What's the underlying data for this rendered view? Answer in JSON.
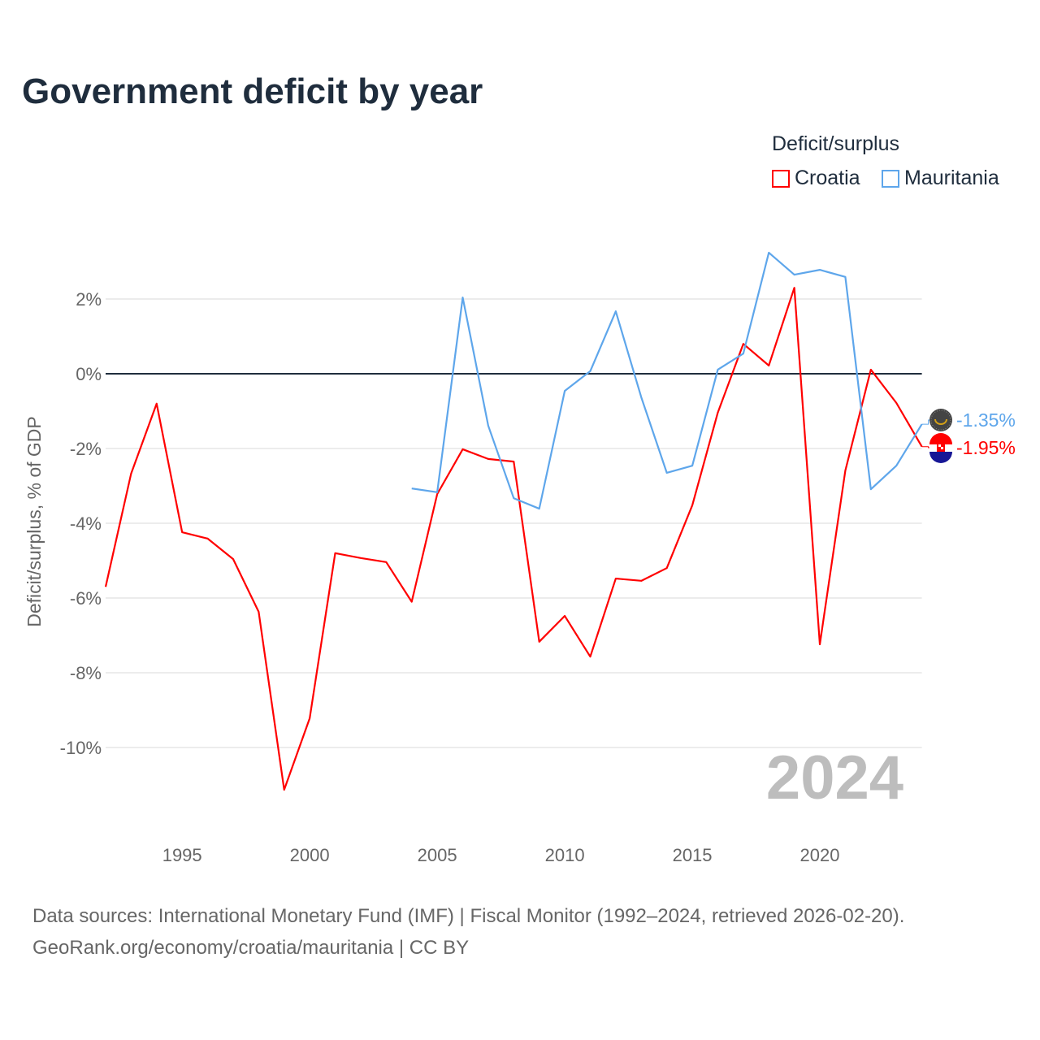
{
  "title": "Government deficit by year",
  "legend": {
    "title": "Deficit/surplus",
    "items": [
      {
        "label": "Croatia",
        "color": "#ff0000"
      },
      {
        "label": "Mauritania",
        "color": "#5ea6eb"
      }
    ]
  },
  "watermark_year": "2024",
  "footer": {
    "line1": "Data sources: International Monetary Fund (IMF) | Fiscal Monitor (1992–2024, retrieved 2026-02-20).",
    "line2": "GeoRank.org/economy/croatia/mauritania | CC BY"
  },
  "chart_data": {
    "type": "line",
    "title": "Government deficit by year",
    "xlabel": "",
    "ylabel": "Deficit/surplus, % of GDP",
    "xlim": [
      1992,
      2024
    ],
    "ylim": [
      -12,
      3.5
    ],
    "x_ticks": [
      1995,
      2000,
      2005,
      2010,
      2015,
      2020
    ],
    "x_tick_labels": [
      "1995",
      "2000",
      "2005",
      "2010",
      "2015",
      "2020"
    ],
    "y_ticks": [
      2,
      0,
      -2,
      -4,
      -6,
      -8,
      -10
    ],
    "y_tick_labels": [
      "2%",
      "0%",
      "-2%",
      "-4%",
      "-6%",
      "-8%",
      "-10%"
    ],
    "grid": true,
    "legend_position": "top-right",
    "series": [
      {
        "name": "Croatia",
        "color": "#ff0000",
        "end_label": "-1.95%",
        "x": [
          1992,
          1993,
          1994,
          1995,
          1996,
          1997,
          1998,
          1999,
          2000,
          2001,
          2002,
          2003,
          2004,
          2005,
          2006,
          2007,
          2008,
          2009,
          2010,
          2011,
          2012,
          2013,
          2014,
          2015,
          2016,
          2017,
          2018,
          2019,
          2020,
          2021,
          2022,
          2023,
          2024
        ],
        "values": [
          -5.7,
          -2.67,
          -0.8,
          -4.24,
          -4.41,
          -4.96,
          -6.37,
          -11.13,
          -9.22,
          -4.8,
          -4.93,
          -5.04,
          -6.1,
          -3.22,
          -2.02,
          -2.28,
          -2.35,
          -7.17,
          -6.48,
          -7.57,
          -5.48,
          -5.54,
          -5.2,
          -3.52,
          -1.04,
          0.8,
          0.22,
          2.3,
          -7.24,
          -2.59,
          0.11,
          -0.78,
          -1.95
        ]
      },
      {
        "name": "Mauritania",
        "color": "#5ea6eb",
        "end_label": "-1.35%",
        "x": [
          2004,
          2005,
          2006,
          2007,
          2008,
          2009,
          2010,
          2011,
          2012,
          2013,
          2014,
          2015,
          2016,
          2017,
          2018,
          2019,
          2020,
          2021,
          2022,
          2023,
          2024
        ],
        "values": [
          -3.07,
          -3.17,
          2.04,
          -1.39,
          -3.33,
          -3.61,
          -0.46,
          0.07,
          1.67,
          -0.63,
          -2.65,
          -2.46,
          0.11,
          0.54,
          3.24,
          2.65,
          2.78,
          2.59,
          -3.09,
          -2.46,
          -1.35
        ]
      }
    ]
  }
}
